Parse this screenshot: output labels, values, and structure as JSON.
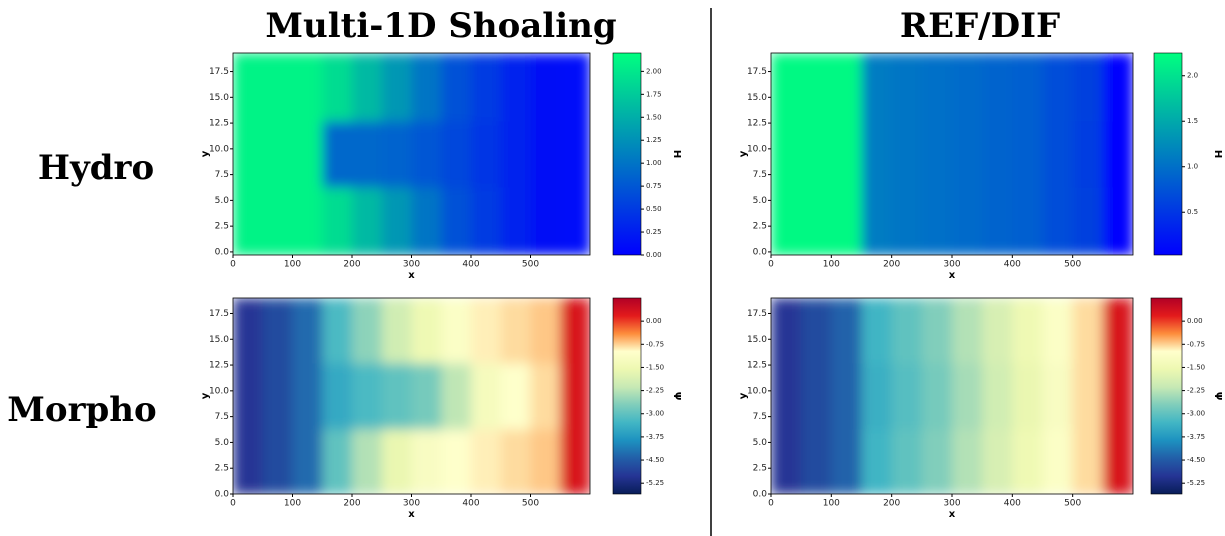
{
  "column_titles": [
    "Multi-1D Shoaling",
    "REF/DIF"
  ],
  "row_labels": [
    "Hydro",
    "Morpho"
  ],
  "chart_data": [
    {
      "type": "heatmap",
      "xlabel": "x",
      "ylabel": "y",
      "colorbar_label": "H",
      "xlim": [
        0,
        600
      ],
      "ylim": [
        -0.3,
        19.3
      ],
      "xticks": [
        0,
        100,
        200,
        300,
        400,
        500
      ],
      "yticks": [
        {
          "value": 0,
          "label": "0.0"
        },
        2.5,
        {
          "value": 5,
          "label": "5.0"
        },
        7.5,
        {
          "value": 10,
          "label": "10.0"
        },
        12.5,
        {
          "value": 15,
          "label": "15.0"
        },
        17.5
      ],
      "xbins": [
        0,
        50,
        100,
        150,
        200,
        250,
        300,
        350,
        400,
        450,
        500,
        550,
        600
      ],
      "ybins": [
        -0.3,
        6.3,
        12.7,
        19.3
      ],
      "values": [
        [
          2.1,
          2.1,
          2.1,
          1.9,
          1.6,
          1.3,
          1.0,
          0.7,
          0.5,
          0.3,
          0.15,
          0.1
        ],
        [
          2.1,
          2.1,
          2.1,
          0.9,
          0.9,
          0.85,
          0.75,
          0.6,
          0.45,
          0.3,
          0.15,
          0.1
        ],
        [
          2.1,
          2.1,
          2.1,
          1.9,
          1.6,
          1.3,
          1.0,
          0.7,
          0.5,
          0.3,
          0.15,
          0.1
        ]
      ],
      "clim": [
        0,
        2.2
      ],
      "cticks": [
        {
          "value": 0,
          "label": "0.00"
        },
        {
          "value": 0.25,
          "label": "0.25"
        },
        {
          "value": 0.5,
          "label": "0.50"
        },
        {
          "value": 0.75,
          "label": "0.75"
        },
        {
          "value": 1,
          "label": "1.00"
        },
        {
          "value": 1.25,
          "label": "1.25"
        },
        {
          "value": 1.5,
          "label": "1.50"
        },
        {
          "value": 1.75,
          "label": "1.75"
        },
        {
          "value": 2,
          "label": "2.00"
        }
      ],
      "colormap": [
        "#0000ff",
        "#00ff80"
      ]
    },
    {
      "type": "heatmap",
      "xlabel": "x",
      "ylabel": "y",
      "colorbar_label": "H",
      "xlim": [
        0,
        600
      ],
      "ylim": [
        -0.3,
        19.3
      ],
      "xticks": [
        0,
        100,
        200,
        300,
        400,
        500
      ],
      "yticks": [
        {
          "value": 0,
          "label": "0.0"
        },
        2.5,
        {
          "value": 5,
          "label": "5.0"
        },
        7.5,
        {
          "value": 10,
          "label": "10.0"
        },
        12.5,
        {
          "value": 15,
          "label": "15.0"
        },
        17.5
      ],
      "xbins": [
        0,
        50,
        100,
        150,
        200,
        250,
        300,
        350,
        400,
        450,
        500,
        550,
        600
      ],
      "ybins": [
        -0.3,
        6.3,
        12.7,
        19.3
      ],
      "values": [
        [
          2.2,
          2.2,
          2.2,
          1.1,
          1.05,
          1.0,
          0.95,
          0.9,
          0.85,
          0.7,
          0.6,
          0.05
        ],
        [
          2.2,
          2.2,
          2.2,
          1.1,
          1.05,
          1.0,
          0.95,
          0.9,
          0.85,
          0.7,
          0.55,
          0.05
        ],
        [
          2.2,
          2.2,
          2.2,
          1.1,
          1.05,
          1.0,
          0.95,
          0.9,
          0.85,
          0.7,
          0.6,
          0.05
        ]
      ],
      "clim": [
        0.03,
        2.25
      ],
      "cticks": [
        0.5,
        {
          "value": 1,
          "label": "1.0"
        },
        1.5,
        {
          "value": 2,
          "label": "2.0"
        }
      ],
      "colormap": [
        "#0000ff",
        "#00ff80"
      ]
    },
    {
      "type": "heatmap",
      "xlabel": "x",
      "ylabel": "y",
      "colorbar_label": "Ψ",
      "xlim": [
        0,
        600
      ],
      "ylim": [
        0,
        19
      ],
      "xticks": [
        0,
        100,
        200,
        300,
        400,
        500
      ],
      "yticks": [
        {
          "value": 0,
          "label": "0.0"
        },
        2.5,
        {
          "value": 5,
          "label": "5.0"
        },
        7.5,
        {
          "value": 10,
          "label": "10.0"
        },
        12.5,
        {
          "value": 15,
          "label": "15.0"
        },
        17.5
      ],
      "xbins": [
        0,
        50,
        100,
        150,
        200,
        250,
        300,
        350,
        400,
        450,
        500,
        550,
        600
      ],
      "ybins": [
        0,
        6.3,
        12.7,
        19
      ],
      "values": [
        [
          -5.0,
          -4.7,
          -4.3,
          -3.0,
          -2.3,
          -1.6,
          -1.2,
          -1.0,
          -0.9,
          -0.8,
          -0.7,
          0.3
        ],
        [
          -5.0,
          -4.7,
          -4.3,
          -3.5,
          -3.2,
          -3.0,
          -2.8,
          -2.2,
          -1.3,
          -1.0,
          -0.8,
          0.3
        ],
        [
          -5.0,
          -4.7,
          -4.3,
          -3.2,
          -2.6,
          -2.0,
          -1.5,
          -1.1,
          -0.9,
          -0.8,
          -0.7,
          0.3
        ]
      ],
      "clim": [
        -5.6,
        0.75
      ],
      "cticks": [
        {
          "value": 0,
          "label": "0.00"
        },
        {
          "value": -0.75,
          "label": "-0.75"
        },
        {
          "value": -1.5,
          "label": "-1.50"
        },
        {
          "value": -2.25,
          "label": "-2.25"
        },
        {
          "value": -3,
          "label": "-3.00"
        },
        {
          "value": -3.75,
          "label": "-3.75"
        },
        {
          "value": -4.5,
          "label": "-4.50"
        },
        {
          "value": -5.25,
          "label": "-5.25"
        }
      ],
      "colormap": [
        "#081d58",
        "#253494",
        "#225ea8",
        "#1d91c0",
        "#41b6c4",
        "#7fcdbb",
        "#c7e9b4",
        "#edf8b1",
        "#ffffcc",
        "#fd8d3c",
        "#e31a1c",
        "#b10026"
      ]
    },
    {
      "type": "heatmap",
      "xlabel": "x",
      "ylabel": "y",
      "colorbar_label": "Ψ",
      "xlim": [
        0,
        600
      ],
      "ylim": [
        0,
        19
      ],
      "xticks": [
        0,
        100,
        200,
        300,
        400,
        500
      ],
      "yticks": [
        {
          "value": 0,
          "label": "0.0"
        },
        2.5,
        {
          "value": 5,
          "label": "5.0"
        },
        7.5,
        {
          "value": 10,
          "label": "10.0"
        },
        12.5,
        {
          "value": 15,
          "label": "15.0"
        },
        17.5
      ],
      "xbins": [
        0,
        50,
        100,
        150,
        200,
        250,
        300,
        350,
        400,
        450,
        500,
        550,
        600
      ],
      "ybins": [
        0,
        6.3,
        12.7,
        19
      ],
      "values": [
        [
          -5.0,
          -4.7,
          -4.4,
          -3.3,
          -3.0,
          -2.7,
          -2.3,
          -1.9,
          -1.5,
          -1.1,
          -0.8,
          0.3
        ],
        [
          -5.0,
          -4.7,
          -4.4,
          -3.4,
          -3.1,
          -2.8,
          -2.4,
          -2.0,
          -1.6,
          -1.2,
          -0.8,
          0.3
        ],
        [
          -5.0,
          -4.7,
          -4.4,
          -3.3,
          -3.0,
          -2.7,
          -2.3,
          -1.9,
          -1.5,
          -1.1,
          -0.8,
          0.3
        ]
      ],
      "clim": [
        -5.6,
        0.75
      ],
      "cticks": [
        {
          "value": 0,
          "label": "0.00"
        },
        {
          "value": -0.75,
          "label": "-0.75"
        },
        {
          "value": -1.5,
          "label": "-1.50"
        },
        {
          "value": -2.25,
          "label": "-2.25"
        },
        {
          "value": -3,
          "label": "-3.00"
        },
        {
          "value": -3.75,
          "label": "-3.75"
        },
        {
          "value": -4.5,
          "label": "-4.50"
        },
        {
          "value": -5.25,
          "label": "-5.25"
        }
      ],
      "colormap": [
        "#081d58",
        "#253494",
        "#225ea8",
        "#1d91c0",
        "#41b6c4",
        "#7fcdbb",
        "#c7e9b4",
        "#edf8b1",
        "#ffffcc",
        "#fd8d3c",
        "#e31a1c",
        "#b10026"
      ]
    }
  ]
}
